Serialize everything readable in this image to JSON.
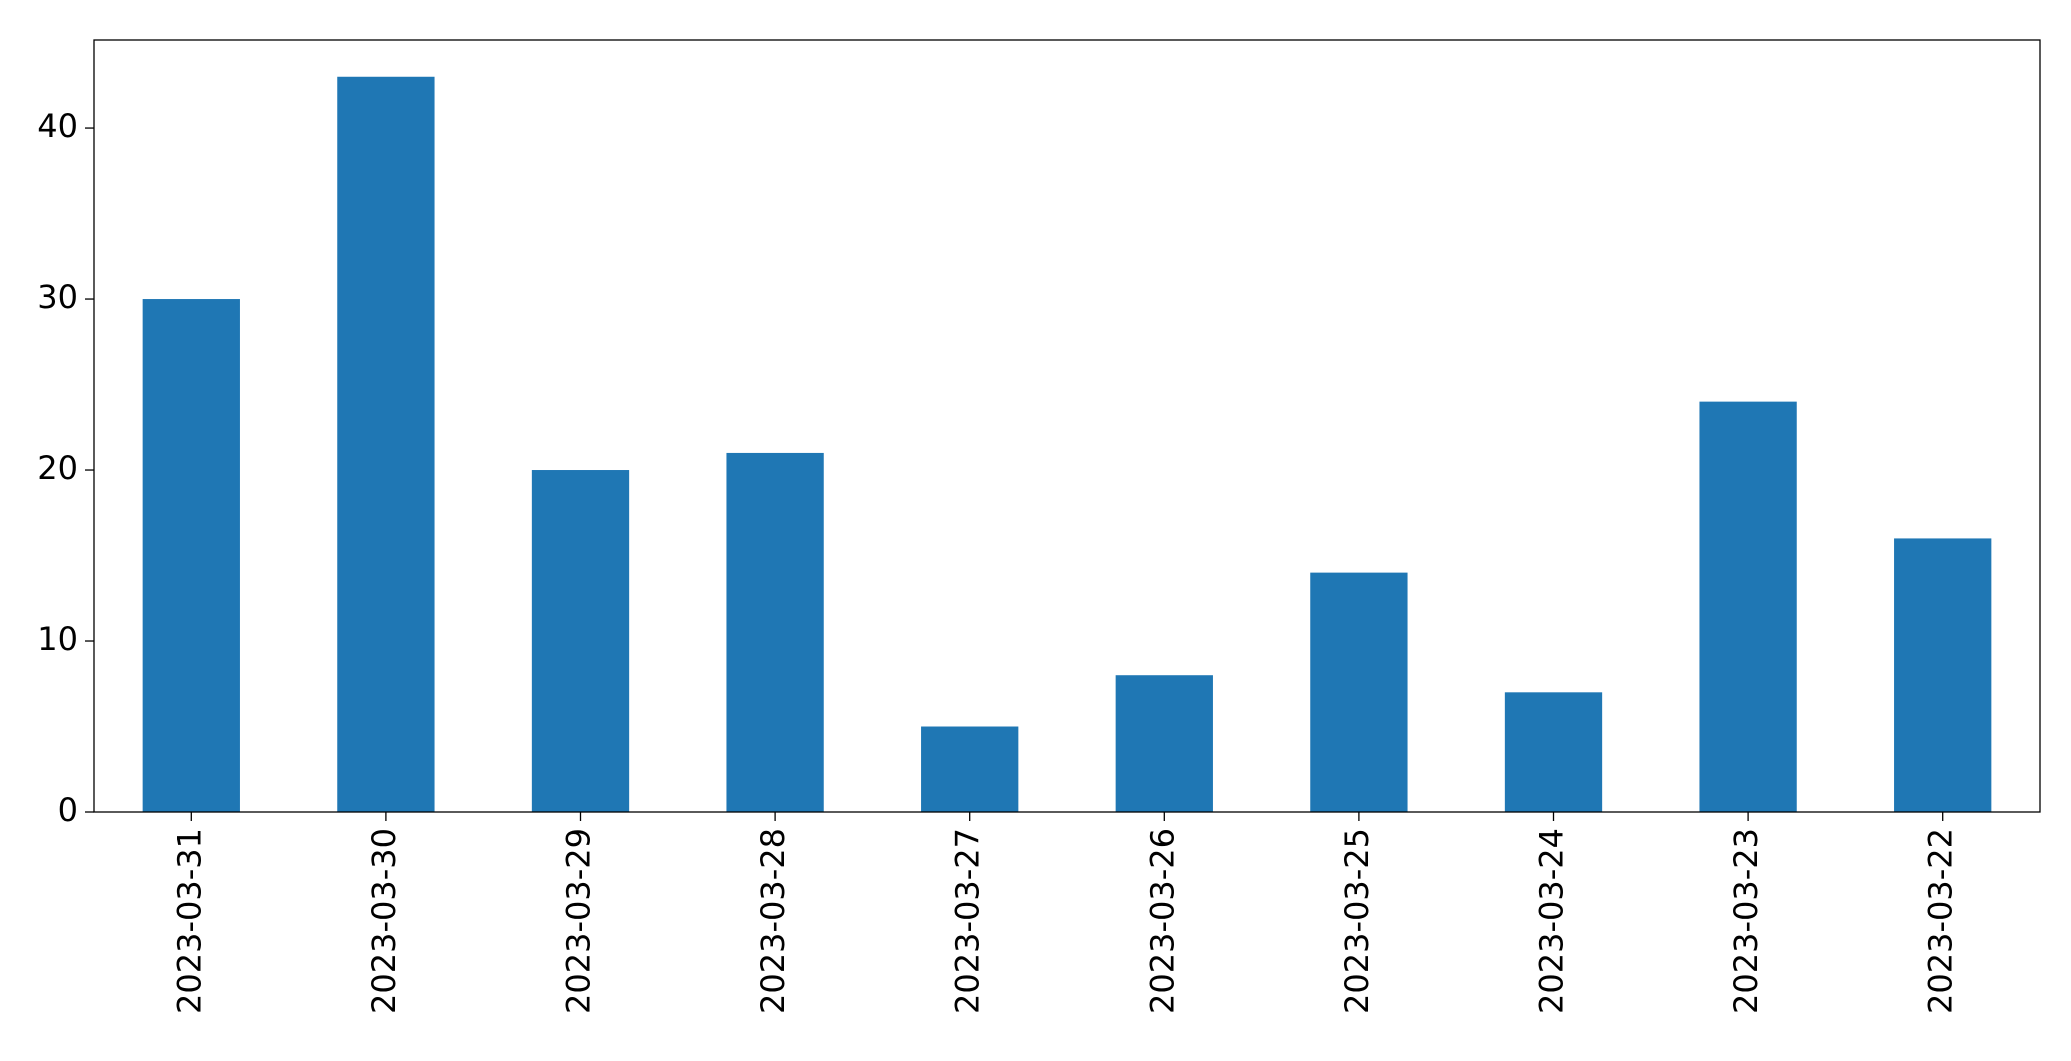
{
  "chart_data": {
    "type": "bar",
    "categories": [
      "2023-03-31",
      "2023-03-30",
      "2023-03-29",
      "2023-03-28",
      "2023-03-27",
      "2023-03-26",
      "2023-03-25",
      "2023-03-24",
      "2023-03-23",
      "2023-03-22"
    ],
    "values": [
      30,
      43,
      20,
      21,
      5,
      8,
      14,
      7,
      24,
      16
    ],
    "color": "#1f77b4",
    "ylim": [
      0,
      45.15
    ],
    "yticks": [
      0,
      10,
      20,
      30,
      40
    ],
    "grid": false
  }
}
